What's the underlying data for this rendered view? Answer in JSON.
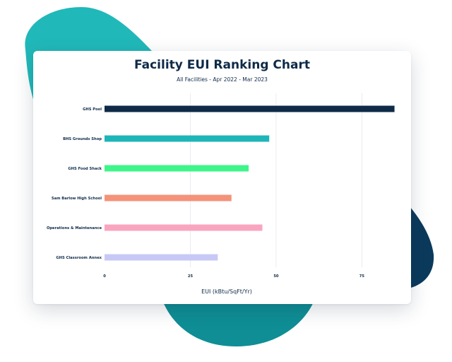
{
  "chart_data": {
    "type": "bar",
    "orientation": "horizontal",
    "title": "Facility EUI Ranking Chart",
    "subtitle": "All Facilities  - Apr 2022 - Mar 2023",
    "xlabel": "EUI (kBtu/SqFt/Yr)",
    "ylabel": "",
    "xlim": [
      0,
      85
    ],
    "xticks": [
      0,
      25,
      50,
      75
    ],
    "grid": true,
    "categories": [
      "GHS Pool",
      "BHS Grounds Shop",
      "GHS Food Shack",
      "Sam Barlow High School",
      "Operations & Maintenance",
      "GHS Classroom Annex"
    ],
    "values": [
      84.5,
      48,
      42,
      37,
      46,
      33
    ],
    "colors": [
      "#0e2a47",
      "#1db5b8",
      "#3ef58a",
      "#f4937a",
      "#f9a5c0",
      "#c8c8f7"
    ]
  },
  "decor_colors": [
    "#21b8b9",
    "#0f8e95",
    "#0b3a5c"
  ]
}
